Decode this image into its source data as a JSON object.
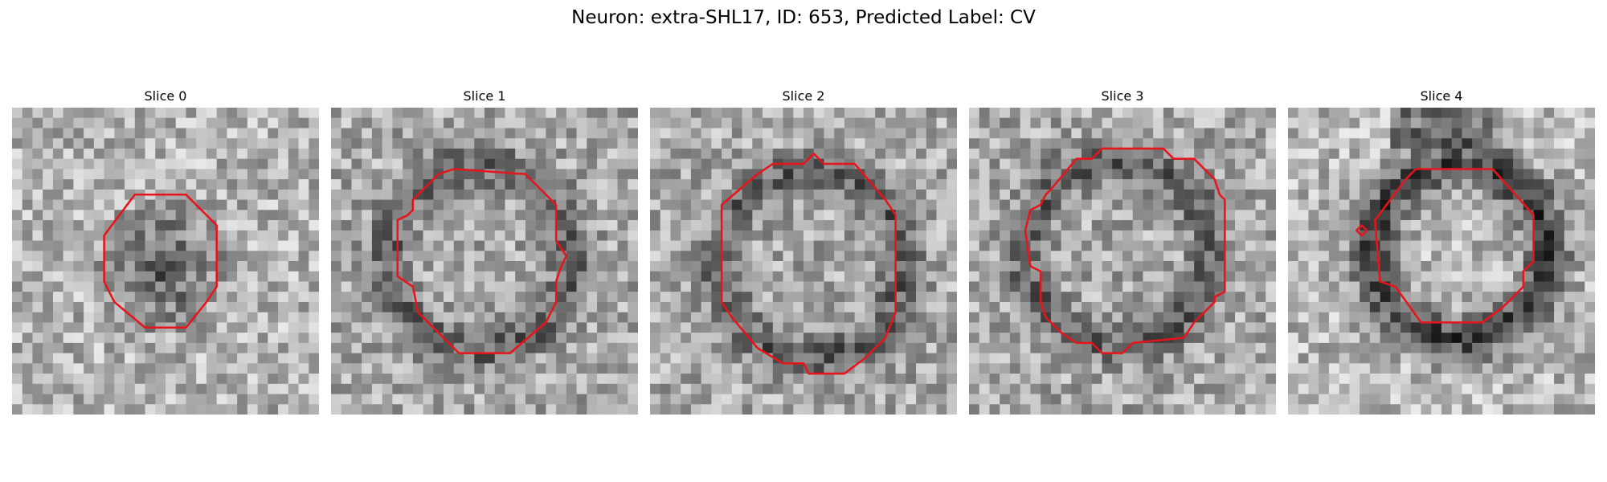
{
  "figure": {
    "title": "Neuron: extra-SHL17, ID: 653, Predicted Label: CV"
  },
  "grid_size": 30,
  "contour_color": "#e8141b",
  "panels": [
    {
      "title": "Slice 0",
      "image_style": "dark-center",
      "contour": [
        [
          12,
          8.5
        ],
        [
          17,
          8.5
        ],
        [
          20,
          11.5
        ],
        [
          20,
          17.5
        ],
        [
          19,
          19
        ],
        [
          17,
          21.5
        ],
        [
          13,
          21.5
        ],
        [
          10,
          19
        ],
        [
          9,
          17
        ],
        [
          9,
          12.5
        ]
      ]
    },
    {
      "title": "Slice 1",
      "image_style": "bright-ring",
      "contour": [
        [
          10.5,
          6.5
        ],
        [
          12,
          6
        ],
        [
          19,
          6.5
        ],
        [
          22,
          9.5
        ],
        [
          22,
          13
        ],
        [
          23,
          14.5
        ],
        [
          22.5,
          15.5
        ],
        [
          22,
          17
        ],
        [
          22,
          19
        ],
        [
          21,
          21
        ],
        [
          17.5,
          24
        ],
        [
          12.5,
          24
        ],
        [
          10.5,
          22
        ],
        [
          8.5,
          20
        ],
        [
          8,
          17.5
        ],
        [
          6.5,
          16.5
        ],
        [
          6.5,
          11
        ],
        [
          7.5,
          10.5
        ],
        [
          8,
          10
        ],
        [
          8,
          9
        ]
      ]
    },
    {
      "title": "Slice 2",
      "image_style": "bright-ring",
      "contour": [
        [
          10.5,
          6.5
        ],
        [
          12,
          5.5
        ],
        [
          15,
          5.5
        ],
        [
          16,
          4.5
        ],
        [
          17,
          5.5
        ],
        [
          20,
          5.5
        ],
        [
          23,
          9
        ],
        [
          24,
          10.5
        ],
        [
          24,
          20
        ],
        [
          23,
          22.5
        ],
        [
          21,
          24.5
        ],
        [
          19,
          26
        ],
        [
          15.5,
          26
        ],
        [
          15,
          25
        ],
        [
          13,
          25
        ],
        [
          10.5,
          23.5
        ],
        [
          8,
          20.5
        ],
        [
          7,
          19
        ],
        [
          7,
          9.5
        ]
      ]
    },
    {
      "title": "Slice 3",
      "image_style": "bright-ring",
      "contour": [
        [
          10.5,
          5
        ],
        [
          12,
          5
        ],
        [
          13,
          4
        ],
        [
          19,
          4
        ],
        [
          20,
          5
        ],
        [
          22,
          5
        ],
        [
          24,
          7
        ],
        [
          24.5,
          8.5
        ],
        [
          25,
          9
        ],
        [
          25,
          18
        ],
        [
          24,
          18.5
        ],
        [
          24,
          19
        ],
        [
          22,
          21
        ],
        [
          21,
          22.5
        ],
        [
          16,
          23
        ],
        [
          15,
          24
        ],
        [
          13,
          24
        ],
        [
          12,
          23
        ],
        [
          10.5,
          23
        ],
        [
          9,
          22
        ],
        [
          7.5,
          20.5
        ],
        [
          7,
          19
        ],
        [
          7,
          16
        ],
        [
          6,
          15.5
        ],
        [
          5.5,
          12
        ],
        [
          6,
          10
        ],
        [
          7,
          9.5
        ],
        [
          7.5,
          8.5
        ],
        [
          8,
          8
        ]
      ]
    },
    {
      "title": "Slice 4",
      "image_style": "dark-ring",
      "contour": [
        [
          12,
          6.5
        ],
        [
          12.5,
          6
        ],
        [
          20,
          6
        ],
        [
          24,
          10.5
        ],
        [
          24,
          15
        ],
        [
          23,
          16
        ],
        [
          23,
          17.5
        ],
        [
          21.5,
          19
        ],
        [
          21,
          19.5
        ],
        [
          19,
          21
        ],
        [
          13,
          21
        ],
        [
          10.5,
          17.5
        ],
        [
          9,
          17
        ],
        [
          8.5,
          11
        ],
        [
          11.5,
          7
        ]
      ],
      "artifact": [
        [
          6.7,
          12
        ],
        [
          7.2,
          11.5
        ],
        [
          7.7,
          12
        ],
        [
          7.2,
          12.5
        ]
      ]
    }
  ]
}
